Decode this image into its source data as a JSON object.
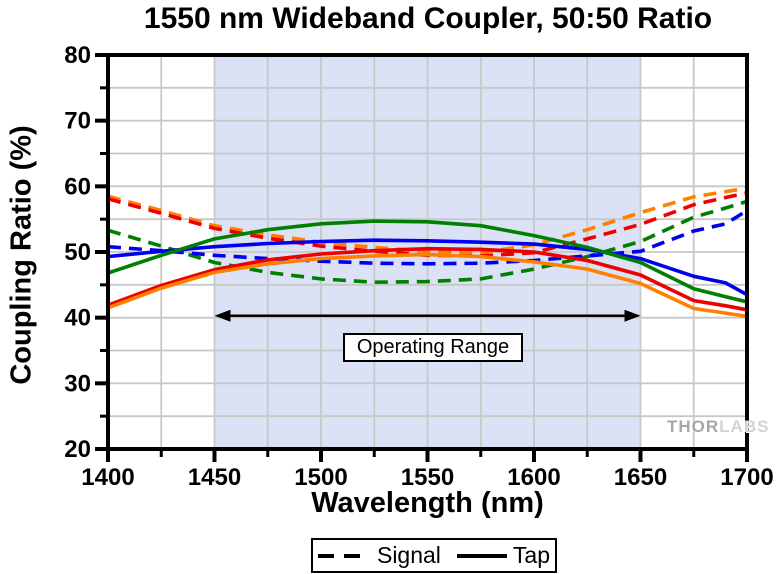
{
  "watermark": {
    "thor": "THOR",
    "labs": "LABS"
  },
  "chart_data": {
    "type": "line",
    "title": "1550 nm Wideband Coupler, 50:50 Ratio",
    "xlabel": "Wavelength (nm)",
    "ylabel": "Coupling Ratio (%)",
    "xlim": [
      1400,
      1700
    ],
    "ylim": [
      20,
      80
    ],
    "x_ticks_major": [
      1400,
      1450,
      1500,
      1550,
      1600,
      1650,
      1700
    ],
    "x_tick_minor_step": 25,
    "y_ticks_major": [
      20,
      30,
      40,
      50,
      60,
      70,
      80
    ],
    "y_tick_minor_step": 5,
    "grid": true,
    "grid_color": "#c8c8c8",
    "shaded_region": {
      "x_start": 1450,
      "x_end": 1650,
      "color": "#dbe2f5"
    },
    "annotation": {
      "label": "Operating Range",
      "arrow_x_start": 1450,
      "arrow_x_end": 1650,
      "arrow_y": 40.3
    },
    "legend": [
      {
        "label": "Signal",
        "style": "dashed"
      },
      {
        "label": "Tap",
        "style": "solid"
      }
    ],
    "x": [
      1400,
      1425,
      1450,
      1475,
      1500,
      1525,
      1550,
      1575,
      1600,
      1625,
      1650,
      1675,
      1690,
      1700
    ],
    "series": [
      {
        "name": "signal-orange",
        "group": "Signal",
        "style": "dashed",
        "color": "#ff8000",
        "values": [
          58.5,
          56.3,
          54.0,
          52.6,
          51.5,
          50.7,
          50.1,
          49.9,
          51.1,
          53.4,
          56.0,
          58.4,
          59.2,
          59.7
        ]
      },
      {
        "name": "signal-red",
        "group": "Signal",
        "style": "dashed",
        "color": "#ee0000",
        "values": [
          58.1,
          55.9,
          53.6,
          52.1,
          50.9,
          50.1,
          49.5,
          49.4,
          49.9,
          52.0,
          54.2,
          57.2,
          58.3,
          59.0
        ]
      },
      {
        "name": "signal-green",
        "group": "Signal",
        "style": "dashed",
        "color": "#008000",
        "values": [
          53.3,
          50.9,
          48.4,
          46.9,
          45.9,
          45.4,
          45.5,
          45.9,
          47.4,
          49.3,
          51.6,
          55.3,
          56.7,
          57.7
        ]
      },
      {
        "name": "signal-blue",
        "group": "Signal",
        "style": "dashed",
        "color": "#0000ee",
        "values": [
          50.8,
          50.2,
          49.5,
          49.0,
          48.6,
          48.3,
          48.2,
          48.3,
          48.7,
          49.4,
          50.1,
          53.2,
          54.3,
          56.3
        ]
      },
      {
        "name": "tap-blue",
        "group": "Tap",
        "style": "solid",
        "color": "#0000ee",
        "values": [
          49.3,
          50.1,
          50.8,
          51.3,
          51.6,
          51.8,
          51.7,
          51.5,
          51.2,
          50.4,
          49.0,
          46.3,
          45.3,
          43.5
        ]
      },
      {
        "name": "tap-green",
        "group": "Tap",
        "style": "solid",
        "color": "#008000",
        "values": [
          46.8,
          49.5,
          52.0,
          53.4,
          54.3,
          54.7,
          54.6,
          54.0,
          52.5,
          50.7,
          48.4,
          44.4,
          43.2,
          42.4
        ]
      },
      {
        "name": "tap-red",
        "group": "Tap",
        "style": "solid",
        "color": "#ee0000",
        "values": [
          41.9,
          44.9,
          47.3,
          48.8,
          49.7,
          50.2,
          50.5,
          50.4,
          50.0,
          48.7,
          46.5,
          42.6,
          41.8,
          41.2
        ]
      },
      {
        "name": "tap-orange",
        "group": "Tap",
        "style": "solid",
        "color": "#ff8000",
        "values": [
          41.5,
          44.5,
          46.9,
          48.2,
          49.0,
          49.4,
          49.6,
          49.3,
          48.5,
          47.4,
          45.2,
          41.4,
          40.7,
          40.2
        ]
      }
    ]
  }
}
